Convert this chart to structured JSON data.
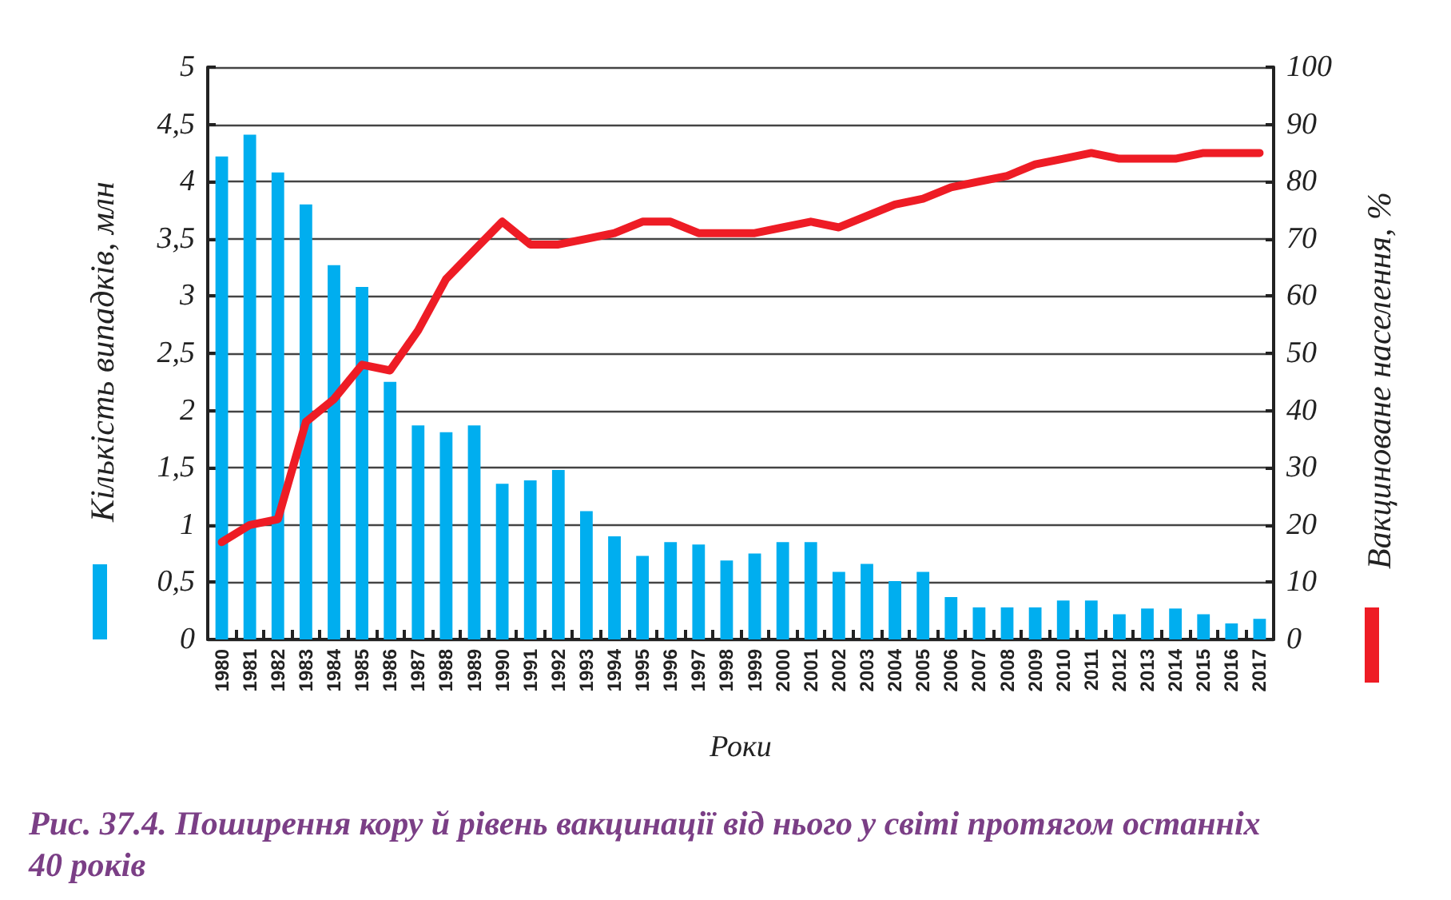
{
  "chart_data": {
    "type": "bar",
    "xlabel": "Роки",
    "ylabel": "Кількість випадків, млн",
    "y2label": "Вакциноване населення, %",
    "annotations": [
      "Рис. 37.4. Поширення кору й рівень вакцинації від нього у світі протягом останніх 40 років"
    ],
    "categories": [
      "1980",
      "1981",
      "1982",
      "1983",
      "1984",
      "1985",
      "1986",
      "1987",
      "1988",
      "1989",
      "1990",
      "1991",
      "1992",
      "1993",
      "1994",
      "1995",
      "1996",
      "1997",
      "1998",
      "1999",
      "2000",
      "2001",
      "2002",
      "2003",
      "2004",
      "2005",
      "2006",
      "2007",
      "2008",
      "2009",
      "2010",
      "2011",
      "2012",
      "2013",
      "2014",
      "2015",
      "2016",
      "2017"
    ],
    "series": [
      {
        "color": "#00aeef",
        "values": [
          4.22,
          4.41,
          4.08,
          3.8,
          3.27,
          3.08,
          2.25,
          1.87,
          1.81,
          1.87,
          1.36,
          1.39,
          1.48,
          1.12,
          0.9,
          0.73,
          0.85,
          0.83,
          0.69,
          0.75,
          0.85,
          0.85,
          0.59,
          0.66,
          0.51,
          0.59,
          0.37,
          0.28,
          0.28,
          0.28,
          0.34,
          0.34,
          0.22,
          0.27,
          0.27,
          0.22,
          0.14,
          0.18
        ]
      },
      {
        "type": "line",
        "axis": "y2",
        "color": "#ee1c25",
        "values": [
          17,
          20,
          21,
          38,
          42,
          48,
          47,
          54,
          63,
          68,
          73,
          69,
          69,
          70,
          71,
          73,
          73,
          71,
          71,
          71,
          72,
          73,
          72,
          74,
          76,
          77,
          79,
          80,
          81,
          83,
          84,
          85,
          84,
          84,
          84,
          85,
          85,
          85
        ]
      }
    ],
    "ylim": [
      0,
      5
    ],
    "yticks": [
      0,
      {
        "value": 0.5,
        "label": "0,5"
      },
      1,
      {
        "value": 1.5,
        "label": "1,5"
      },
      2,
      {
        "value": 2.5,
        "label": "2,5"
      },
      3,
      {
        "value": 3.5,
        "label": "3,5"
      },
      4,
      {
        "value": 4.5,
        "label": "4,5"
      },
      5
    ],
    "y2lim": [
      0,
      100
    ],
    "y2ticks": [
      0,
      10,
      20,
      30,
      40,
      50,
      60,
      70,
      80,
      90,
      100
    ],
    "grid": "y",
    "marker": "none",
    "line_style": "solid"
  }
}
